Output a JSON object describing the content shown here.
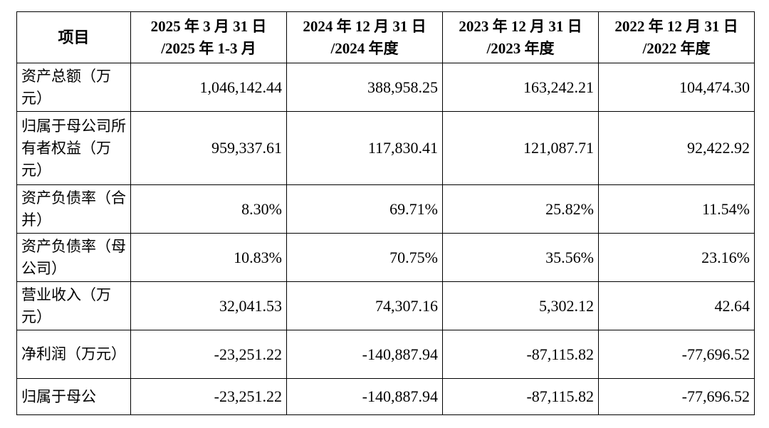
{
  "table": {
    "header": {
      "item": "项目",
      "cols": [
        {
          "line1": "2025 年 3 月 31 日",
          "line2": "/2025 年 1-3 月"
        },
        {
          "line1": "2024 年 12 月 31 日",
          "line2": "/2024 年度"
        },
        {
          "line1": "2023 年 12 月 31 日",
          "line2": "/2023 年度"
        },
        {
          "line1": "2022 年 12 月 31 日",
          "line2": "/2022 年度"
        }
      ]
    },
    "rows": [
      {
        "label": "资产总额（万元）",
        "values": [
          "1,046,142.44",
          "388,958.25",
          "163,242.21",
          "104,474.30"
        ]
      },
      {
        "label": "归属于母公司所有者权益（万元）",
        "values": [
          "959,337.61",
          "117,830.41",
          "121,087.71",
          "92,422.92"
        ]
      },
      {
        "label": "资产负债率（合并）",
        "values": [
          "8.30%",
          "69.71%",
          "25.82%",
          "11.54%"
        ]
      },
      {
        "label": "资产负债率（母公司）",
        "values": [
          "10.83%",
          "70.75%",
          "35.56%",
          "23.16%"
        ]
      },
      {
        "label": "营业收入（万元）",
        "values": [
          "32,041.53",
          "74,307.16",
          "5,302.12",
          "42.64"
        ]
      },
      {
        "label": "净利润（万元）",
        "values": [
          "-23,251.22",
          "-140,887.94",
          "-87,115.82",
          "-77,696.52"
        ]
      },
      {
        "label": "归属于母公",
        "values": [
          "-23,251.22",
          "-140,887.94",
          "-87,115.82",
          "-77,696.52"
        ]
      }
    ]
  }
}
